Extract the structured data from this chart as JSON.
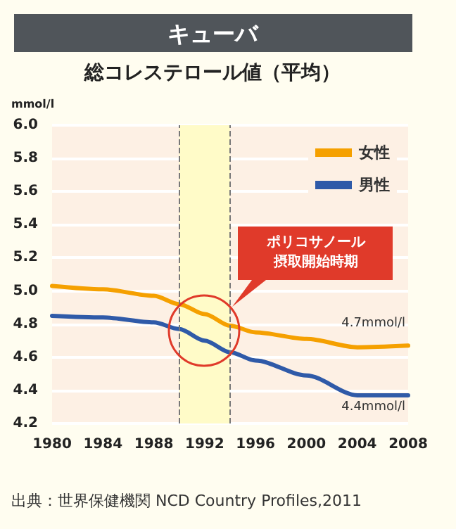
{
  "chart_data": {
    "type": "line",
    "title": "キューバ",
    "subtitle": "総コレステロール値（平均）",
    "ylabel": "mmol/l",
    "x": [
      1980,
      1984,
      1988,
      1990,
      1992,
      1994,
      1996,
      2000,
      2004,
      2008
    ],
    "series": [
      {
        "name": "女性",
        "color": "#f5a000",
        "values": [
          5.03,
          5.01,
          4.97,
          4.92,
          4.86,
          4.79,
          4.75,
          4.71,
          4.66,
          4.67
        ]
      },
      {
        "name": "男性",
        "color": "#2f5aa8",
        "values": [
          4.85,
          4.84,
          4.81,
          4.77,
          4.7,
          4.63,
          4.58,
          4.49,
          4.37,
          4.37
        ]
      }
    ],
    "xlim": [
      1980,
      2008
    ],
    "xticks": [
      1980,
      1984,
      1988,
      1992,
      1996,
      2000,
      2004,
      2008
    ],
    "ylim": [
      4.2,
      6.0
    ],
    "yticks": [
      4.2,
      4.4,
      4.6,
      4.8,
      {
        "value": 5,
        "label": "5.0"
      },
      5.2,
      5.4,
      5.6,
      5.8,
      {
        "value": 6,
        "label": "6.0"
      }
    ],
    "bands": [
      {
        "axis": "x",
        "from": 1990,
        "to": 1994,
        "color": "#fffbc8"
      }
    ],
    "ref_lines": [
      {
        "axis": "x",
        "value": 1990,
        "color": "#777777",
        "line_style": "dashed"
      },
      {
        "axis": "x",
        "value": 1994,
        "color": "#777777",
        "line_style": "dashed"
      }
    ],
    "annotations": [
      "ポリコサノール摂取開始時期",
      {
        "text": "4.7mmol/l",
        "x": 2008,
        "y": 4.7
      },
      {
        "text": "4.4mmol/l",
        "x": 2008,
        "y": 4.4
      },
      "出典：世界保健機関 NCD Country Profiles,2011"
    ],
    "grid": "y",
    "legend": "top right",
    "marker": "none",
    "line_style": "solid"
  }
}
